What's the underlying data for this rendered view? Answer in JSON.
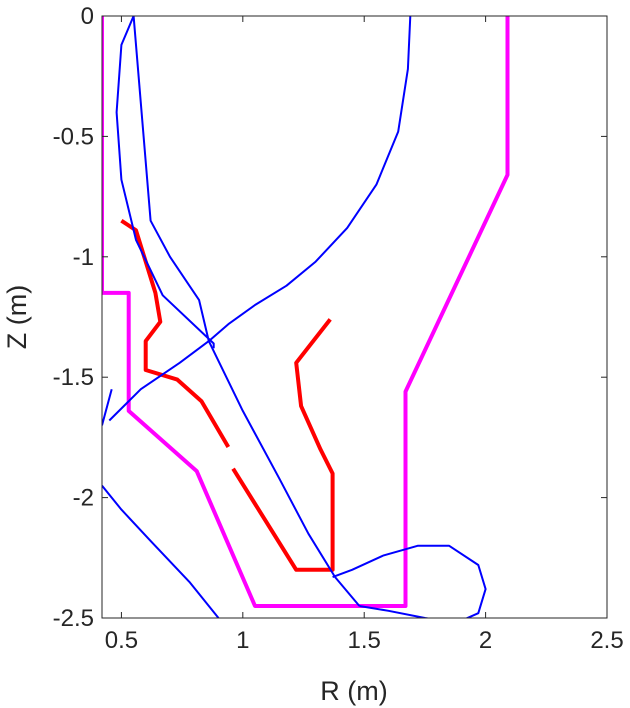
{
  "chart_data": {
    "type": "line",
    "xlabel": "R (m)",
    "ylabel": "Z (m)",
    "xlim": [
      0.42,
      2.5
    ],
    "ylim": [
      -2.5,
      0
    ],
    "xticks": [
      0.5,
      1,
      1.5,
      2,
      2.5
    ],
    "yticks": [
      0,
      -0.5,
      -1,
      -1.5,
      -2,
      -2.5
    ],
    "xtick_labels": [
      "0.5",
      "1",
      "1.5",
      "2",
      "2.5"
    ],
    "ytick_labels": [
      "0",
      "-0.5",
      "-1",
      "-1.5",
      "-2",
      "-2.5"
    ],
    "grid": false,
    "colors": {
      "flux": "#0000ff",
      "wall": "#ff00ff",
      "plates": "#ff0000",
      "axes": "#262626"
    },
    "series": [
      {
        "color": "#ff00ff",
        "x": [
          0.42,
          0.42,
          0.53,
          0.53,
          0.81,
          1.05,
          1.67,
          1.67,
          2.09,
          2.09
        ],
        "y": [
          0,
          -1.15,
          -1.15,
          -1.64,
          -1.89,
          -2.45,
          -2.45,
          -1.56,
          -0.66,
          0
        ]
      },
      {
        "color": "#ff0000",
        "x": [
          0.5,
          0.56,
          0.64,
          0.66,
          0.6,
          0.6,
          0.73,
          0.83,
          0.94
        ],
        "y": [
          -0.85,
          -0.89,
          -1.15,
          -1.27,
          -1.35,
          -1.47,
          -1.51,
          -1.6,
          -1.79
        ]
      },
      {
        "color": "#ff0000",
        "x": [
          0.96,
          1.22,
          1.37,
          1.37,
          1.37,
          1.37,
          1.32,
          1.24,
          1.22,
          1.36
        ],
        "y": [
          -1.88,
          -2.3,
          -2.3,
          -2.2,
          -1.9,
          -1.9,
          -1.8,
          -1.62,
          -1.44,
          -1.26
        ]
      },
      {
        "color": "#0000ff",
        "x": [
          0.88,
          0.88,
          0.67,
          0.56,
          0.5,
          0.48,
          0.5,
          0.55,
          0.62,
          0.7,
          0.78,
          0.82,
          0.86,
          0.94,
          1.05,
          1.18,
          1.3,
          1.43,
          1.55,
          1.64,
          1.68,
          1.69
        ],
        "y": [
          -1.38,
          -1.36,
          -1.16,
          -0.93,
          -0.68,
          -0.4,
          -0.12,
          0,
          -0.85,
          -1.0,
          -1.12,
          -1.18,
          -1.35,
          -1.28,
          -1.2,
          -1.12,
          -1.02,
          -0.88,
          -0.7,
          -0.48,
          -0.22,
          0
        ]
      },
      {
        "color": "#0000ff",
        "x": [
          0.86,
          1.0,
          1.15,
          1.27,
          1.38,
          1.48
        ],
        "y": [
          -1.35,
          -1.64,
          -1.92,
          -2.15,
          -2.33,
          -2.45
        ]
      },
      {
        "color": "#0000ff",
        "x": [
          0.86,
          0.74,
          0.58,
          0.45
        ],
        "y": [
          -1.35,
          -1.44,
          -1.55,
          -1.68
        ]
      },
      {
        "color": "#0000ff",
        "x": [
          1.37,
          1.45,
          1.58,
          1.72,
          1.85,
          1.97,
          2.0,
          1.97,
          1.88,
          1.75,
          1.6,
          1.48
        ],
        "y": [
          -2.33,
          -2.3,
          -2.24,
          -2.2,
          -2.2,
          -2.28,
          -2.38,
          -2.48,
          -2.52,
          -2.5,
          -2.47,
          -2.45
        ]
      },
      {
        "color": "#0000ff",
        "x": [
          0.42,
          0.5,
          0.62,
          0.78,
          0.9
        ],
        "y": [
          -1.95,
          -2.05,
          -2.18,
          -2.35,
          -2.5
        ]
      },
      {
        "color": "#0000ff",
        "x": [
          0.42,
          0.46
        ],
        "y": [
          -1.7,
          -1.55
        ]
      }
    ]
  }
}
